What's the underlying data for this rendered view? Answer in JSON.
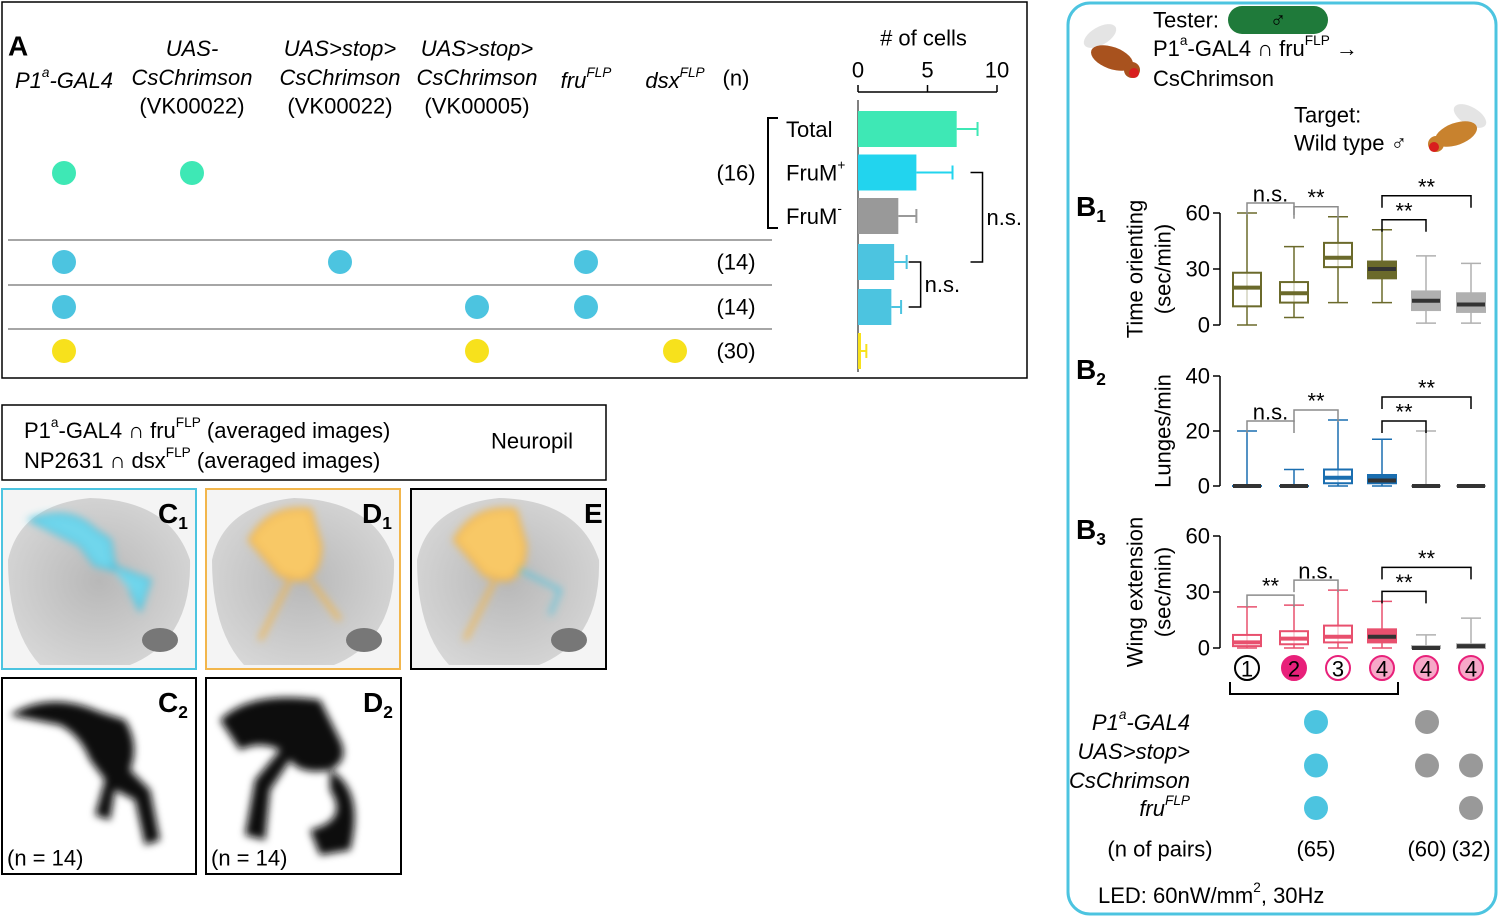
{
  "panel_a": {
    "label": "A",
    "columns": [
      {
        "lines": [
          [
            "P1",
            {
              "sup": "a"
            },
            "-GAL4"
          ]
        ]
      },
      {
        "lines": [
          [
            "UAS-"
          ],
          [
            "CsChrimson"
          ]
        ],
        "insertion": "(VK00022)"
      },
      {
        "lines": [
          [
            "UAS>stop>"
          ],
          [
            "CsChrimson"
          ]
        ],
        "insertion": "(VK00022)"
      },
      {
        "lines": [
          [
            "UAS>stop>"
          ],
          [
            "CsChrimson"
          ]
        ],
        "insertion": "(VK00005)"
      },
      {
        "lines": [
          [
            "fru",
            {
              "sup": "FLP"
            }
          ]
        ]
      },
      {
        "lines": [
          [
            "dsx",
            {
              "sup": "FLP"
            }
          ]
        ]
      }
    ],
    "n_header": "(n)",
    "rows": [
      {
        "dots": [
          0,
          1
        ],
        "color": "#3ee8b5",
        "n": "(16)"
      },
      {
        "dots": [
          0,
          2,
          4
        ],
        "color": "#4cc4e0",
        "n": "(14)"
      },
      {
        "dots": [
          0,
          3,
          4
        ],
        "color": "#4cc4e0",
        "n": "(14)"
      },
      {
        "dots": [
          0,
          3,
          5
        ],
        "color": "#f7e11c",
        "n": "(30)"
      }
    ],
    "bar_chart": {
      "title": "# of cells",
      "xlim": [
        0,
        10
      ],
      "xticks": [
        0,
        5,
        10
      ],
      "bars": [
        {
          "label": [
            "Total"
          ],
          "value": 7.1,
          "error": 1.5,
          "color": "#3ee8b5",
          "row": 0
        },
        {
          "label": [
            "FruM",
            {
              "sup": "+"
            }
          ],
          "value": 4.2,
          "error": 2.6,
          "color": "#22d4ee",
          "row": 0
        },
        {
          "label": [
            "FruM",
            {
              "sup": "-"
            }
          ],
          "value": 2.9,
          "error": 1.3,
          "color": "#999999",
          "row": 0
        },
        {
          "value": 2.6,
          "error": 0.9,
          "color": "#4cc4e0",
          "row": 1
        },
        {
          "value": 2.4,
          "error": 0.7,
          "color": "#4cc4e0",
          "row": 2
        },
        {
          "value": 0.2,
          "error": 0.4,
          "color": "#f7e11c",
          "row": 3
        }
      ],
      "comparisons": [
        {
          "from": 1,
          "to": 3,
          "text": "n.s."
        },
        {
          "from": 3,
          "to": 4,
          "text": "n.s."
        }
      ]
    }
  },
  "panel_b": {
    "tester_label": "Tester:",
    "tester_sex": "♂",
    "tester_genotype": [
      [
        "P1",
        {
          "sup": "a"
        },
        "-GAL4 ∩ fru",
        {
          "sup": "FLP"
        },
        " →"
      ],
      [
        "CsChrimson"
      ]
    ],
    "target_label": "Target:",
    "target_genotype": "Wild type ♂",
    "plots": [
      {
        "label": [
          "B",
          {
            "sub": "1"
          }
        ],
        "ylabel": [
          "Time orienting",
          "(sec/min)"
        ],
        "ylim": [
          0,
          60
        ],
        "yticks": [
          0,
          30,
          60
        ],
        "boxes": [
          {
            "min": 0,
            "q1": 10,
            "median": 20,
            "q3": 28,
            "max": 60,
            "color": "#6b6a2b",
            "filled": false
          },
          {
            "min": 4,
            "q1": 12,
            "median": 17,
            "q3": 23,
            "max": 42,
            "color": "#6b6a2b",
            "filled": false
          },
          {
            "min": 12,
            "q1": 31,
            "median": 36,
            "q3": 44,
            "max": 58,
            "color": "#6b6a2b",
            "filled": false
          },
          {
            "min": 12,
            "q1": 25,
            "median": 30,
            "q3": 34,
            "max": 51,
            "color": "#6b6a2b",
            "filled": true
          },
          {
            "min": 1,
            "q1": 8,
            "median": 13,
            "q3": 18,
            "max": 37,
            "color": "#b0b0b0",
            "filled": true
          },
          {
            "min": 1,
            "q1": 7,
            "median": 11,
            "q3": 17,
            "max": 33,
            "color": "#b0b0b0",
            "filled": true
          }
        ],
        "comparisons": [
          {
            "from": 0,
            "to": 1,
            "text": "n.s.",
            "color": "#8c8c8c"
          },
          {
            "from": 1,
            "to": 2,
            "text": "**",
            "color": "#8c8c8c"
          },
          {
            "from": 3,
            "to": 4,
            "text": "**",
            "color": "#000000"
          },
          {
            "from": 3,
            "to": 5,
            "text": "**",
            "color": "#000000"
          }
        ]
      },
      {
        "label": [
          "B",
          {
            "sub": "2"
          }
        ],
        "ylabel": [
          "Lunges/min"
        ],
        "ylim": [
          0,
          40
        ],
        "yticks": [
          0,
          20,
          40
        ],
        "boxes": [
          {
            "min": 0,
            "q1": 0,
            "median": 0,
            "q3": 0,
            "max": 20,
            "color": "#1a6eb0",
            "filled": true
          },
          {
            "min": 0,
            "q1": 0,
            "median": 0,
            "q3": 0,
            "max": 6,
            "color": "#1a6eb0",
            "filled": true
          },
          {
            "min": 0,
            "q1": 1,
            "median": 3,
            "q3": 6,
            "max": 24,
            "color": "#1a6eb0",
            "filled": false
          },
          {
            "min": 0,
            "q1": 1,
            "median": 2,
            "q3": 4,
            "max": 17,
            "color": "#1a6eb0",
            "filled": true
          },
          {
            "min": 0,
            "q1": 0,
            "median": 0,
            "q3": 0,
            "max": 20,
            "color": "#b0b0b0",
            "filled": true
          },
          {
            "min": 0,
            "q1": 0,
            "median": 0,
            "q3": 0,
            "max": 0,
            "color": "#b0b0b0",
            "filled": true
          }
        ],
        "comparisons": [
          {
            "from": 0,
            "to": 1,
            "text": "n.s.",
            "color": "#8c8c8c"
          },
          {
            "from": 1,
            "to": 2,
            "text": "**",
            "color": "#8c8c8c"
          },
          {
            "from": 3,
            "to": 4,
            "text": "**",
            "color": "#000000"
          },
          {
            "from": 3,
            "to": 5,
            "text": "**",
            "color": "#000000"
          }
        ]
      },
      {
        "label": [
          "B",
          {
            "sub": "3"
          }
        ],
        "ylabel": [
          "Wing extension",
          "(sec/min)"
        ],
        "ylim": [
          0,
          60
        ],
        "yticks": [
          0,
          30,
          60
        ],
        "boxes": [
          {
            "min": 0,
            "q1": 1,
            "median": 3,
            "q3": 7,
            "max": 22,
            "color": "#e8506e",
            "filled": false
          },
          {
            "min": 0,
            "q1": 2,
            "median": 5,
            "q3": 9,
            "max": 23,
            "color": "#e8506e",
            "filled": false
          },
          {
            "min": 0,
            "q1": 3,
            "median": 6,
            "q3": 12,
            "max": 31,
            "color": "#e8506e",
            "filled": false
          },
          {
            "min": 0,
            "q1": 3,
            "median": 6,
            "q3": 10,
            "max": 25,
            "color": "#e8506e",
            "filled": true
          },
          {
            "min": 0,
            "q1": 0,
            "median": 0,
            "q3": 1,
            "max": 7,
            "color": "#b0b0b0",
            "filled": true
          },
          {
            "min": 0,
            "q1": 0,
            "median": 1,
            "q3": 2,
            "max": 16,
            "color": "#b0b0b0",
            "filled": true
          }
        ],
        "comparisons": [
          {
            "from": 0,
            "to": 1,
            "text": "**",
            "color": "#8c8c8c"
          },
          {
            "from": 1,
            "to": 2,
            "text": "n.s.",
            "color": "#8c8c8c"
          },
          {
            "from": 3,
            "to": 4,
            "text": "**",
            "color": "#000000"
          },
          {
            "from": 3,
            "to": 5,
            "text": "**",
            "color": "#000000"
          }
        ]
      }
    ],
    "groups": [
      {
        "number": "1",
        "fill": "#ffffff",
        "stroke": "#000000",
        "text_color": "#000000"
      },
      {
        "number": "2",
        "fill": "#e8207a",
        "stroke": "#e8207a",
        "text_color": "#ffffff"
      },
      {
        "number": "3",
        "fill": "#ffffff",
        "stroke": "#e8207a",
        "text_color": "#e8207a"
      },
      {
        "number": "4",
        "fill": "#f7a8c8",
        "stroke": "#e8207a",
        "text_color": "#e8207a"
      },
      {
        "number": "4",
        "fill": "#f7a8c8",
        "stroke": "#e8207a",
        "text_color": "#e8207a"
      },
      {
        "number": "4",
        "fill": "#f7a8c8",
        "stroke": "#e8207a",
        "text_color": "#e8207a"
      }
    ],
    "genotype": {
      "column_colors": [
        "#4cc4e0",
        "#999999",
        "#999999"
      ],
      "rows": [
        {
          "lines": [
            [
              "P1",
              {
                "sup": "a"
              },
              "-GAL4"
            ]
          ],
          "present": [
            true,
            true,
            false
          ]
        },
        {
          "lines": [
            [
              "UAS>stop>"
            ],
            [
              "CsChrimson"
            ]
          ],
          "present": [
            true,
            true,
            true
          ]
        },
        {
          "lines": [
            [
              "fru",
              {
                "sup": "FLP"
              }
            ]
          ],
          "present": [
            true,
            false,
            true
          ]
        }
      ],
      "n_label": "(n of pairs)",
      "n_values": [
        "(65)",
        "(60)",
        "(32)"
      ]
    },
    "led": [
      "LED: 60nW/mm",
      {
        "sup": "2"
      },
      ", 30Hz"
    ]
  },
  "panel_c": {
    "legend_line1": [
      "P1",
      {
        "sup": "a"
      },
      "-GAL4 ∩ fru",
      {
        "sup": "FLP"
      },
      " (averaged images)"
    ],
    "legend_line2": [
      "NP2631 ∩ dsx",
      {
        "sup": "FLP"
      },
      " (averaged images)"
    ],
    "neuropil": "Neuropil",
    "images": [
      {
        "label": [
          "C",
          {
            "sub": "1"
          }
        ]
      },
      {
        "label": [
          "D",
          {
            "sub": "1"
          }
        ]
      },
      {
        "label": [
          "E"
        ]
      },
      {
        "label": [
          "C",
          {
            "sub": "2"
          }
        ],
        "n": "(n = 14)"
      },
      {
        "label": [
          "D",
          {
            "sub": "2"
          }
        ],
        "n": "(n = 14)"
      }
    ]
  }
}
